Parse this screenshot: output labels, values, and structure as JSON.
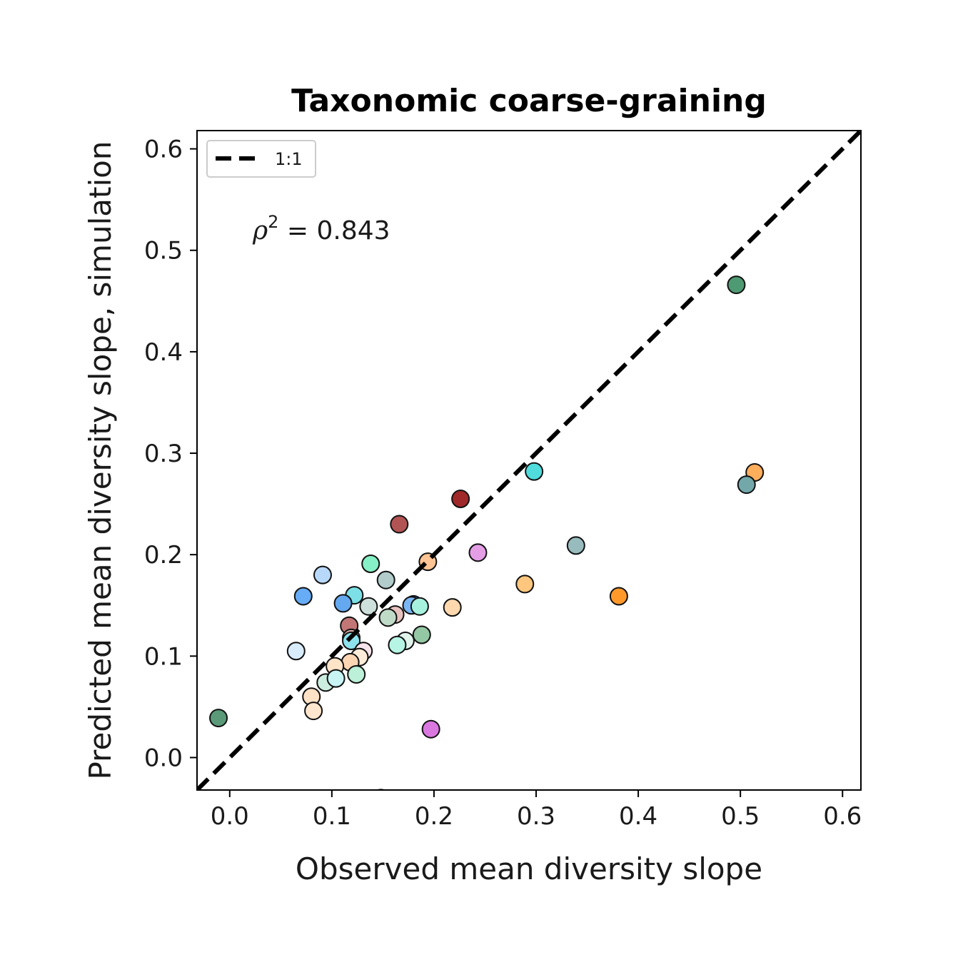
{
  "chart_data": {
    "type": "scatter",
    "title": "Taxonomic coarse-graining",
    "xlabel": "Observed mean diversity slope",
    "ylabel": "Predicted mean diversity slope, simulation",
    "xlim": [
      -0.032,
      0.618
    ],
    "ylim": [
      -0.032,
      0.618
    ],
    "xticks": [
      "0.0",
      "0.1",
      "0.2",
      "0.3",
      "0.4",
      "0.5",
      "0.6"
    ],
    "yticks": [
      "0.0",
      "0.1",
      "0.2",
      "0.3",
      "0.4",
      "0.5",
      "0.6"
    ],
    "tick_values": [
      0.0,
      0.1,
      0.2,
      0.3,
      0.4,
      0.5,
      0.6
    ],
    "grid": false,
    "legend": {
      "placement": "top-left",
      "entries": [
        {
          "label": "1:1",
          "style": "dashed",
          "color": "#000000"
        }
      ]
    },
    "annotation": {
      "symbol": "ρ",
      "superscript": "2",
      "rest": " = 0.843"
    },
    "reference_line": {
      "label": "1:1",
      "x": [
        -0.032,
        0.618
      ],
      "y": [
        -0.032,
        0.618
      ]
    },
    "points": [
      {
        "x": -0.011,
        "y": 0.039,
        "color": "#5a9a78"
      },
      {
        "x": 0.496,
        "y": 0.466,
        "color": "#4e9a72"
      },
      {
        "x": 0.514,
        "y": 0.281,
        "color": "#ffae5c"
      },
      {
        "x": 0.506,
        "y": 0.269,
        "color": "#72a8aa"
      },
      {
        "x": 0.298,
        "y": 0.282,
        "color": "#50dcdc"
      },
      {
        "x": 0.226,
        "y": 0.255,
        "color": "#a02828"
      },
      {
        "x": 0.166,
        "y": 0.23,
        "color": "#b25454"
      },
      {
        "x": 0.339,
        "y": 0.209,
        "color": "#98bcbe"
      },
      {
        "x": 0.243,
        "y": 0.202,
        "color": "#e49ee6"
      },
      {
        "x": 0.194,
        "y": 0.193,
        "color": "#ffc494"
      },
      {
        "x": 0.138,
        "y": 0.191,
        "color": "#86f0c6"
      },
      {
        "x": 0.091,
        "y": 0.18,
        "color": "#b8d8fa"
      },
      {
        "x": 0.153,
        "y": 0.175,
        "color": "#b2cccc"
      },
      {
        "x": 0.289,
        "y": 0.171,
        "color": "#ffc67e"
      },
      {
        "x": 0.072,
        "y": 0.159,
        "color": "#66acf6"
      },
      {
        "x": 0.381,
        "y": 0.159,
        "color": "#ff9a2a"
      },
      {
        "x": 0.122,
        "y": 0.16,
        "color": "#7ce0e6"
      },
      {
        "x": 0.111,
        "y": 0.152,
        "color": "#64a8f0"
      },
      {
        "x": 0.18,
        "y": 0.151,
        "color": "#3a8ef6"
      },
      {
        "x": 0.178,
        "y": 0.15,
        "color": "#7ab6f4"
      },
      {
        "x": 0.136,
        "y": 0.149,
        "color": "#cde0dc"
      },
      {
        "x": 0.186,
        "y": 0.149,
        "color": "#a6f2de"
      },
      {
        "x": 0.218,
        "y": 0.148,
        "color": "#ffd8ae"
      },
      {
        "x": 0.162,
        "y": 0.141,
        "color": "#e8c2be"
      },
      {
        "x": 0.155,
        "y": 0.138,
        "color": "#c0dac8"
      },
      {
        "x": 0.117,
        "y": 0.13,
        "color": "#c27676"
      },
      {
        "x": 0.188,
        "y": 0.121,
        "color": "#94c8a4"
      },
      {
        "x": 0.119,
        "y": 0.118,
        "color": "#d4a8a4"
      },
      {
        "x": 0.172,
        "y": 0.115,
        "color": "#e0f4ec"
      },
      {
        "x": 0.119,
        "y": 0.115,
        "color": "#8ee2ee"
      },
      {
        "x": 0.164,
        "y": 0.111,
        "color": "#b6f4e4"
      },
      {
        "x": 0.065,
        "y": 0.105,
        "color": "#d8ecfc"
      },
      {
        "x": 0.131,
        "y": 0.105,
        "color": "#f6e4ec"
      },
      {
        "x": 0.127,
        "y": 0.099,
        "color": "#ffecd8"
      },
      {
        "x": 0.118,
        "y": 0.094,
        "color": "#ffd6b4"
      },
      {
        "x": 0.103,
        "y": 0.09,
        "color": "#ffe4c8"
      },
      {
        "x": 0.124,
        "y": 0.082,
        "color": "#bcf0d8"
      },
      {
        "x": 0.094,
        "y": 0.074,
        "color": "#cceee0"
      },
      {
        "x": 0.104,
        "y": 0.078,
        "color": "#c8f4f4"
      },
      {
        "x": 0.08,
        "y": 0.06,
        "color": "#ffe2c6"
      },
      {
        "x": 0.082,
        "y": 0.046,
        "color": "#ffe6ce"
      },
      {
        "x": 0.197,
        "y": 0.028,
        "color": "#da78e0"
      },
      {
        "x": 0.148,
        "y": -0.04,
        "color": "#e0e0e0"
      }
    ]
  }
}
